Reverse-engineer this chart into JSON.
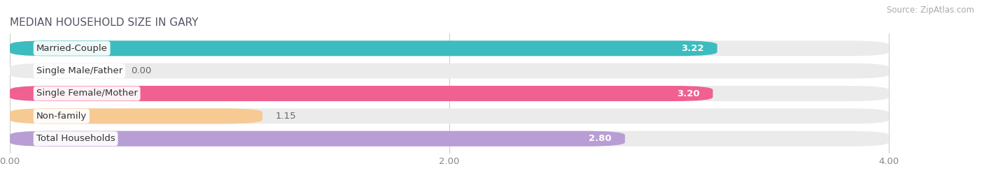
{
  "title": "MEDIAN HOUSEHOLD SIZE IN GARY",
  "source": "Source: ZipAtlas.com",
  "categories": [
    "Married-Couple",
    "Single Male/Father",
    "Single Female/Mother",
    "Non-family",
    "Total Households"
  ],
  "values": [
    3.22,
    0.0,
    3.2,
    1.15,
    2.8
  ],
  "bar_colors": [
    "#3cbcbe",
    "#a8bce8",
    "#f06090",
    "#f7ca94",
    "#b89ed4"
  ],
  "background_color": "#ffffff",
  "bar_bg_color": "#ebebeb",
  "xlim": [
    0,
    4.3
  ],
  "xlim_display": [
    0,
    4.0
  ],
  "xticks": [
    0.0,
    2.0,
    4.0
  ],
  "xtick_labels": [
    "0.00",
    "2.00",
    "4.00"
  ],
  "label_fontsize": 9.5,
  "value_fontsize": 9.5,
  "title_fontsize": 11,
  "source_fontsize": 8.5,
  "value_inside_threshold": 2.5
}
